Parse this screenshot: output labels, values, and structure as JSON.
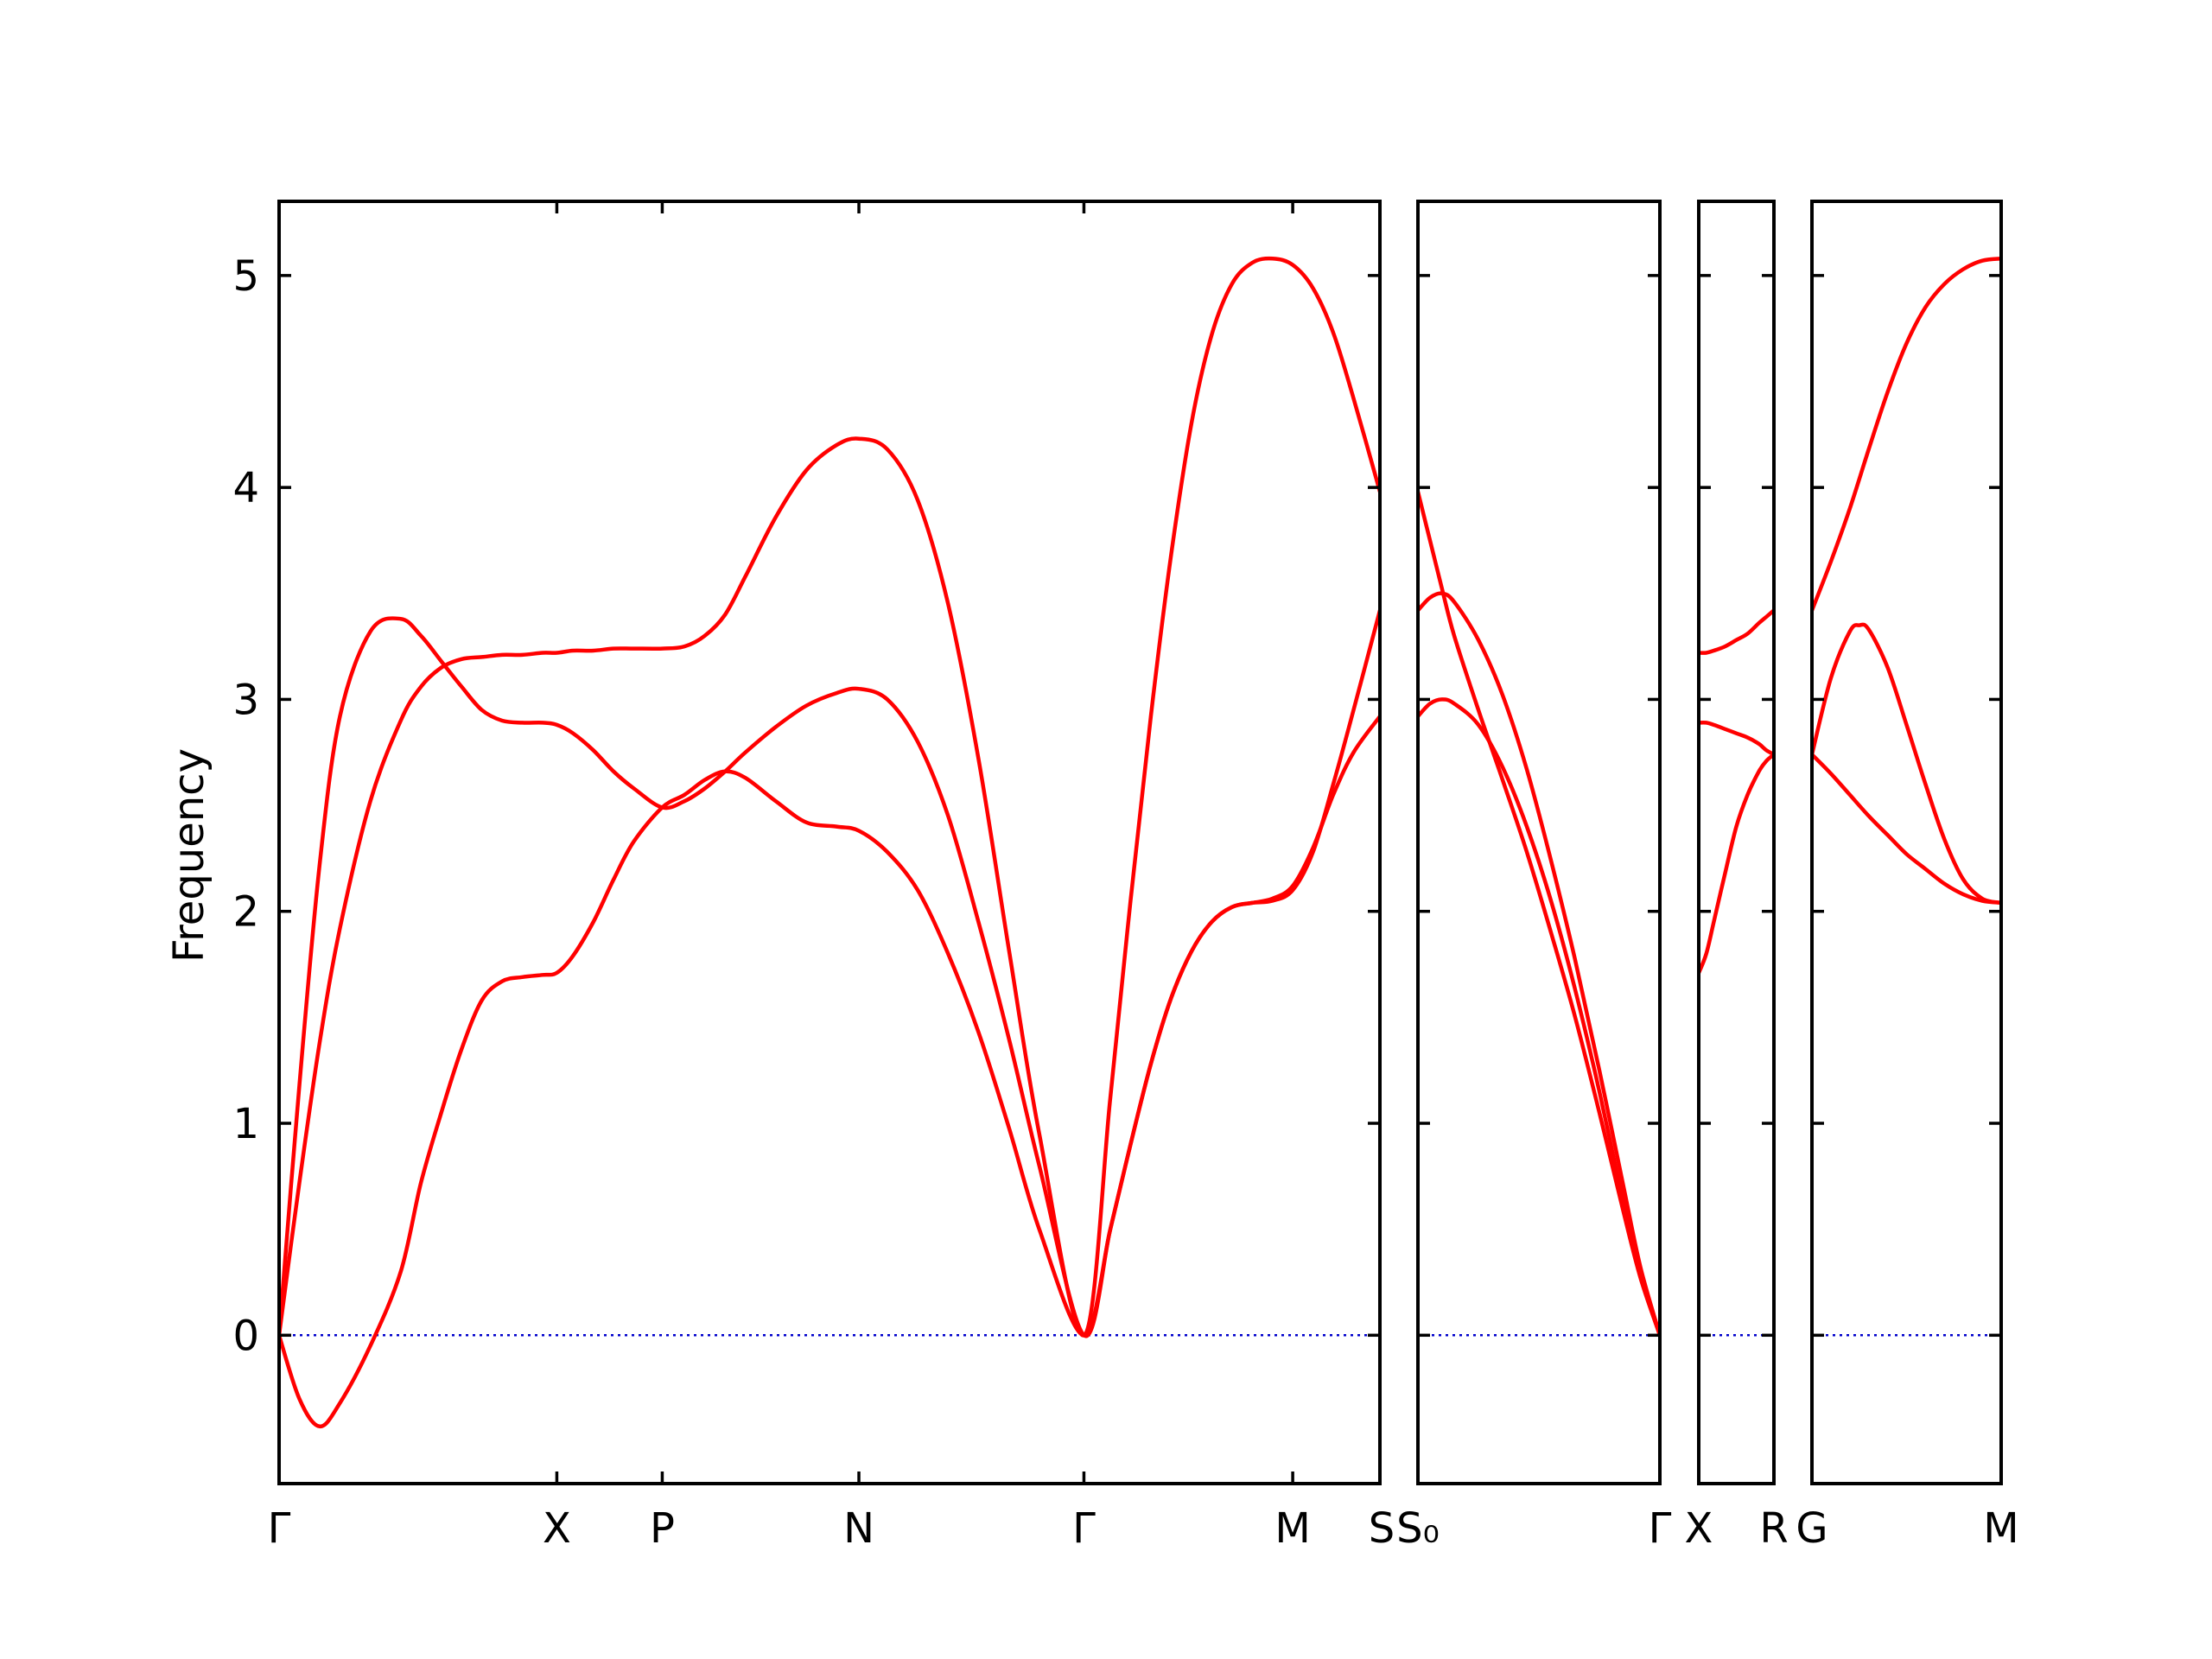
{
  "chart_data": {
    "type": "line",
    "title": "",
    "ylabel": "Frequency",
    "ylim": [
      -0.7,
      5.35
    ],
    "yticks": [
      0,
      1,
      2,
      3,
      4,
      5
    ],
    "grid": false,
    "colors": {
      "bands": "#ff0000",
      "zero_line": "#0000cc",
      "frame": "#000000"
    },
    "segments": [
      {
        "xlim": [
          0,
          5.43
        ],
        "xticks": [
          {
            "x": 0.0,
            "label": "Γ"
          },
          {
            "x": 1.37,
            "label": "X"
          },
          {
            "x": 1.89,
            "label": "P"
          },
          {
            "x": 2.86,
            "label": "N"
          },
          {
            "x": 3.97,
            "label": "Γ"
          },
          {
            "x": 5.0,
            "label": "M"
          },
          {
            "x": 5.69,
            "label": "S"
          }
        ],
        "series": [
          {
            "x": [
              0,
              0.1,
              0.2,
              0.3,
              0.45,
              0.6,
              0.7,
              0.8,
              0.9,
              1.0,
              1.1,
              1.2,
              1.3,
              1.37,
              1.45,
              1.55,
              1.65,
              1.75,
              1.89,
              2.0,
              2.1,
              2.2,
              2.3,
              2.45,
              2.6,
              2.75,
              2.86,
              3.0,
              3.15,
              3.3,
              3.45,
              3.6,
              3.75,
              3.97,
              4.1,
              4.2,
              4.3,
              4.4,
              4.5,
              4.6,
              4.7,
              4.8,
              4.9,
              5.0,
              5.1,
              5.2,
              5.3,
              5.43
            ],
            "y": [
              0,
              -0.3,
              -0.43,
              -0.32,
              -0.05,
              0.3,
              0.72,
              1.05,
              1.35,
              1.58,
              1.67,
              1.69,
              1.7,
              1.71,
              1.79,
              1.95,
              2.15,
              2.33,
              2.49,
              2.55,
              2.62,
              2.66,
              2.63,
              2.52,
              2.42,
              2.4,
              2.38,
              2.28,
              2.1,
              1.8,
              1.43,
              0.98,
              0.5,
              0.0,
              0.5,
              0.9,
              1.28,
              1.59,
              1.81,
              1.95,
              2.02,
              2.04,
              2.06,
              2.12,
              2.3,
              2.55,
              2.75,
              2.92
            ]
          },
          {
            "x": [
              0,
              0.1,
              0.2,
              0.3,
              0.45,
              0.6,
              0.7,
              0.8,
              0.9,
              1.0,
              1.1,
              1.2,
              1.3,
              1.37,
              1.45,
              1.55,
              1.65,
              1.75,
              1.89,
              2.0,
              2.1,
              2.2,
              2.3,
              2.45,
              2.6,
              2.75,
              2.86,
              3.0,
              3.15,
              3.3,
              3.45,
              3.6,
              3.75,
              3.97,
              4.1,
              4.2,
              4.3,
              4.4,
              4.5,
              4.6,
              4.7,
              4.8,
              4.9,
              5.0,
              5.1,
              5.2,
              5.3,
              5.43
            ],
            "y": [
              0,
              0.72,
              1.38,
              1.92,
              2.52,
              2.9,
              3.06,
              3.15,
              3.19,
              3.2,
              3.21,
              3.21,
              3.22,
              3.22,
              3.23,
              3.23,
              3.24,
              3.24,
              3.24,
              3.25,
              3.3,
              3.4,
              3.58,
              3.86,
              4.08,
              4.2,
              4.23,
              4.18,
              3.94,
              3.45,
              2.72,
              1.82,
              0.95,
              0.0,
              1.12,
              2.05,
              2.92,
              3.68,
              4.3,
              4.72,
              4.96,
              5.06,
              5.08,
              5.05,
              4.94,
              4.73,
              4.42,
              3.98
            ]
          },
          {
            "x": [
              0,
              0.1,
              0.2,
              0.3,
              0.45,
              0.6,
              0.7,
              0.8,
              0.9,
              1.0,
              1.1,
              1.2,
              1.3,
              1.37,
              1.45,
              1.55,
              1.65,
              1.75,
              1.89,
              2.0,
              2.1,
              2.2,
              2.3,
              2.45,
              2.6,
              2.75,
              2.86,
              3.0,
              3.15,
              3.3,
              3.45,
              3.6,
              3.75,
              3.97,
              4.1,
              4.2,
              4.3,
              4.4,
              4.5,
              4.6,
              4.7,
              4.8,
              4.9,
              5.0,
              5.1,
              5.2,
              5.3,
              5.43
            ],
            "y": [
              0,
              1.18,
              2.22,
              2.92,
              3.32,
              3.38,
              3.3,
              3.18,
              3.06,
              2.95,
              2.9,
              2.89,
              2.89,
              2.88,
              2.84,
              2.76,
              2.66,
              2.58,
              2.49,
              2.52,
              2.58,
              2.66,
              2.75,
              2.87,
              2.97,
              3.03,
              3.05,
              3.0,
              2.8,
              2.45,
              1.95,
              1.4,
              0.8,
              0.0,
              0.5,
              0.9,
              1.28,
              1.59,
              1.81,
              1.95,
              2.02,
              2.04,
              2.05,
              2.1,
              2.28,
              2.6,
              2.95,
              3.42
            ]
          }
        ]
      },
      {
        "xlim": [
          0,
          1.0
        ],
        "xticks": [
          {
            "x": 0.0,
            "label": "S₀"
          },
          {
            "x": 1.0,
            "label": "Γ"
          }
        ],
        "series": [
          {
            "x": [
              0,
              0.05,
              0.1,
              0.15,
              0.25,
              0.35,
              0.45,
              0.55,
              0.65,
              0.75,
              0.85,
              0.92,
              1.0
            ],
            "y": [
              2.92,
              2.98,
              3.0,
              2.98,
              2.88,
              2.68,
              2.4,
              2.05,
              1.63,
              1.15,
              0.62,
              0.28,
              0.0
            ]
          },
          {
            "x": [
              0,
              0.05,
              0.1,
              0.15,
              0.25,
              0.35,
              0.45,
              0.55,
              0.65,
              0.75,
              0.85,
              0.92,
              1.0
            ],
            "y": [
              3.42,
              3.48,
              3.5,
              3.46,
              3.28,
              3.02,
              2.67,
              2.24,
              1.77,
              1.25,
              0.7,
              0.32,
              0.0
            ]
          },
          {
            "x": [
              0,
              0.05,
              0.1,
              0.15,
              0.25,
              0.35,
              0.45,
              0.55,
              0.65,
              0.75,
              0.85,
              0.92,
              1.0
            ],
            "y": [
              3.98,
              3.75,
              3.52,
              3.3,
              2.95,
              2.62,
              2.28,
              1.9,
              1.5,
              1.05,
              0.58,
              0.27,
              0.0
            ]
          }
        ]
      },
      {
        "xlim": [
          0,
          1.0
        ],
        "xticks": [
          {
            "x": 0.0,
            "label": "X"
          },
          {
            "x": 1.0,
            "label": "R"
          }
        ],
        "series": [
          {
            "x": [
              0,
              0.1,
              0.2,
              0.35,
              0.5,
              0.65,
              0.8,
              0.9,
              1.0
            ],
            "y": [
              1.71,
              1.8,
              1.95,
              2.18,
              2.4,
              2.55,
              2.66,
              2.71,
              2.74
            ]
          },
          {
            "x": [
              0,
              0.1,
              0.2,
              0.35,
              0.5,
              0.65,
              0.8,
              0.9,
              1.0
            ],
            "y": [
              2.89,
              2.89,
              2.88,
              2.86,
              2.84,
              2.82,
              2.79,
              2.76,
              2.74
            ]
          },
          {
            "x": [
              0,
              0.1,
              0.2,
              0.35,
              0.5,
              0.65,
              0.8,
              0.9,
              1.0
            ],
            "y": [
              3.22,
              3.22,
              3.23,
              3.25,
              3.28,
              3.31,
              3.36,
              3.39,
              3.42
            ]
          }
        ]
      },
      {
        "xlim": [
          0,
          1.0
        ],
        "xticks": [
          {
            "x": 0.0,
            "label": "G"
          },
          {
            "x": 1.0,
            "label": "M"
          }
        ],
        "series": [
          {
            "x": [
              0,
              0.1,
              0.2,
              0.3,
              0.4,
              0.5,
              0.6,
              0.7,
              0.8,
              0.9,
              1.0
            ],
            "y": [
              2.74,
              2.65,
              2.55,
              2.45,
              2.36,
              2.27,
              2.2,
              2.13,
              2.08,
              2.05,
              2.04
            ]
          },
          {
            "x": [
              0,
              0.1,
              0.2,
              0.25,
              0.3,
              0.4,
              0.5,
              0.6,
              0.7,
              0.8,
              0.9,
              1.0
            ],
            "y": [
              2.74,
              3.1,
              3.32,
              3.35,
              3.33,
              3.15,
              2.88,
              2.6,
              2.34,
              2.15,
              2.06,
              2.04
            ]
          },
          {
            "x": [
              0,
              0.1,
              0.2,
              0.3,
              0.4,
              0.5,
              0.6,
              0.7,
              0.8,
              0.9,
              1.0
            ],
            "y": [
              3.42,
              3.65,
              3.9,
              4.18,
              4.45,
              4.68,
              4.85,
              4.96,
              5.03,
              5.07,
              5.08
            ]
          }
        ]
      }
    ]
  }
}
